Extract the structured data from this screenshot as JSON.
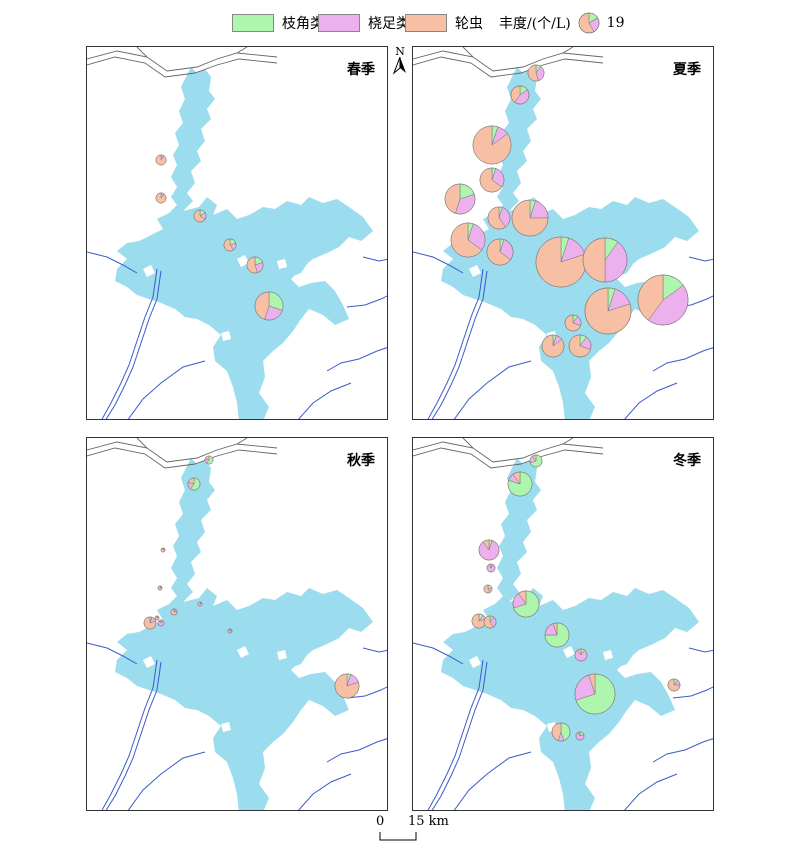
{
  "legend": {
    "items": [
      {
        "label": "枝角类",
        "color": "#aef5ae"
      },
      {
        "label": "桡足类",
        "color": "#ecb0ec"
      },
      {
        "label": "轮虫",
        "color": "#f7c0a5"
      }
    ],
    "abundance_label": "丰度/(个/L)",
    "abundance_value": "19"
  },
  "north_label": "N",
  "scale": {
    "zero": "0",
    "end": "15 km"
  },
  "colors": {
    "water": "#9bdcee",
    "river": "#3a5bcc",
    "road": "#666666",
    "cladocera": "#aef5ae",
    "copepoda": "#ecb0ec",
    "rotifera": "#f7c0a5"
  },
  "panels": [
    {
      "season": "春季",
      "pies": [
        [
          0.0,
          0.1,
          0.9
        ],
        [
          0.0,
          0.1,
          0.9
        ],
        [
          0.15,
          0.2,
          0.65
        ],
        [
          0.2,
          0.2,
          0.6
        ],
        [
          0.2,
          0.25,
          0.55
        ],
        [
          0.3,
          0.25,
          0.45
        ]
      ]
    },
    {
      "season": "夏季",
      "pies": [
        [
          0.1,
          0.35,
          0.55
        ],
        [
          0.15,
          0.45,
          0.4
        ],
        [
          0.05,
          0.1,
          0.85
        ],
        [
          0.05,
          0.3,
          0.65
        ],
        [
          0.2,
          0.35,
          0.45
        ],
        [
          0.05,
          0.35,
          0.6
        ],
        [
          0.05,
          0.2,
          0.75
        ],
        [
          0.05,
          0.3,
          0.65
        ],
        [
          0.05,
          0.3,
          0.65
        ],
        [
          0.05,
          0.15,
          0.8
        ],
        [
          0.1,
          0.4,
          0.5
        ],
        [
          0.05,
          0.15,
          0.8
        ],
        [
          0.15,
          0.45,
          0.4
        ],
        [
          0.1,
          0.2,
          0.7
        ],
        [
          0.05,
          0.1,
          0.85
        ],
        [
          0.1,
          0.2,
          0.7
        ]
      ]
    },
    {
      "season": "秋季",
      "pies": [
        [
          0.6,
          0.2,
          0.2
        ],
        [
          0.6,
          0.2,
          0.2
        ],
        [
          0.05,
          0.15,
          0.8
        ],
        [
          0.05,
          0.15,
          0.8
        ],
        [
          0.05,
          0.15,
          0.8
        ],
        [
          0.05,
          0.15,
          0.8
        ],
        [
          0.05,
          0.15,
          0.8
        ],
        [
          0.05,
          0.15,
          0.8
        ],
        [
          0.1,
          0.8,
          0.1
        ],
        [
          0.25,
          0.65,
          0.1
        ],
        [
          0.05,
          0.15,
          0.8
        ]
      ]
    },
    {
      "season": "冬季",
      "pies": [
        [
          0.7,
          0.2,
          0.1
        ],
        [
          0.8,
          0.1,
          0.1
        ],
        [
          0.05,
          0.85,
          0.1
        ],
        [
          0.1,
          0.8,
          0.1
        ],
        [
          0.2,
          0.2,
          0.6
        ],
        [
          0.7,
          0.2,
          0.1
        ],
        [
          0.1,
          0.1,
          0.8
        ],
        [
          0.1,
          0.3,
          0.6
        ],
        [
          0.75,
          0.2,
          0.05
        ],
        [
          0.1,
          0.8,
          0.1
        ],
        [
          0.7,
          0.25,
          0.05
        ],
        [
          0.1,
          0.15,
          0.75
        ],
        [
          0.45,
          0.1,
          0.45
        ],
        [
          0.2,
          0.7,
          0.1
        ]
      ]
    }
  ]
}
